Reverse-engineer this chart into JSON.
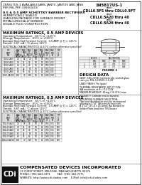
{
  "left_header_lines": [
    [
      "1N5817US-1 AVAILABLE JANS, JANTX, JANTXV AND JANS",
      false,
      3.0
    ],
    [
      "PER MIL-PRF-19500/419",
      false,
      3.0
    ],
    [
      "",
      false,
      3.0
    ],
    [
      "0.5 & 0.5 AMP SCHOTTKY BARRIER RECTIFIERS",
      true,
      3.2
    ],
    [
      "HERMETICALLY SEALED",
      false,
      3.0
    ],
    [
      "LEADLESS PACKAGE FOR SURFACE MOUNT",
      false,
      3.0
    ],
    [
      "METALLURGICALLY BONDED",
      false,
      3.0
    ],
    [
      "DOUBLE PLUG CONSTRUCTION",
      false,
      3.0
    ]
  ],
  "right_header_lines": [
    [
      "1N5817US-1",
      true,
      4.0
    ],
    [
      "and",
      false,
      3.0
    ],
    [
      "CDLL0.5FS thru CDLL0.5FT",
      true,
      3.5
    ],
    [
      "and",
      false,
      3.0
    ],
    [
      "CDLL0.5A20 thru 40",
      true,
      3.5
    ],
    [
      "and",
      false,
      3.0
    ],
    [
      "CDLL0.5A26 thru 40",
      true,
      3.5
    ]
  ],
  "sec1_title": "MAXIMUM RATINGS, 0.5 AMP DEVICES",
  "sec1_ratings": [
    "Operating Temperature:  -65°C to +125°C",
    "Storage Temperature:  -65°C to +150°C",
    "Average Rectified Forward Current:  0.5 AMP @ TJ = 125°C",
    "Derate:  6.67 mA / °C above 125°C"
  ],
  "sec1_elec_header": "ELECTRICAL CHARACTERISTICS @ 25°C (unless otherwise specified)",
  "sec2_title": "MAXIMUM RATINGS, 0.5 AMP DEVICES",
  "sec2_ratings": [
    "Operating Temperature:  -65°C to +125°C",
    "Storage Temperature:  -65°C to +150°C",
    "Average Rectified Forward Current:  0.5 AMP @ TJ = 125°C",
    "Derate:  6.67 mA / °C above 125°C"
  ],
  "sec2_elec_header": "ELECTRICAL CHARACTERISTICS @ 25°C (unless otherwise specified)",
  "table_col_headers": [
    "CDI\nPART\nNUMBER",
    "MAXIMUM\nREPETITIVE\nPEAK REVERSE\nVOLTAGE\nVRRM",
    "MAXIMUM\nRMS\nVOLTAGE\nVRMS",
    "MAXIMUM DC\nBLOCKING\nVOLTAGE\nVDC",
    "MAXIMUM\nAVERAGE\nFORWARD\nRECTIFIED\nCURRENT\nIF(AV)",
    "MAXIMUM\nPEAK SURGE\nFORWARD\nCURRENT\nIFSM",
    "MAXIMUM\nFORWARD\nVOLTAGE\nVF",
    "MAXIMUM\nREVERSE\nCURRENT\nIR",
    "TYPICAL\nJUNCTION\nCAPACITANCE\nCJ"
  ],
  "table_col_units": [
    "",
    "VOLTS",
    "VOLTS",
    "VOLTS",
    "AMP",
    "AMP",
    "VOLT",
    "mA",
    "pF"
  ],
  "table_col_cond": [
    "",
    "@ 0.5 To 0.0 AMP @ 85 LCI",
    "",
    "",
    "",
    "1 Cycle",
    "@ 0.5A",
    "@ V=VDC Ty=25C",
    "@ 1MHZ"
  ],
  "table1_rows": [
    [
      "CDL0.5A20",
      "20",
      "14",
      "20",
      "0.5",
      "15",
      "0.55",
      "0.01",
      ""
    ],
    [
      "CDL0.5A30",
      "30",
      "21",
      "30",
      "0.5",
      "15",
      "0.55",
      "0.01",
      ""
    ],
    [
      "CDL0.5A40",
      "40",
      "28",
      "40",
      "0.5",
      "15",
      "0.55",
      "0.01",
      ""
    ],
    [
      "CDL0.5A60",
      "60",
      "42",
      "60",
      "0.5",
      "15",
      "0.55",
      "0.05",
      ""
    ],
    [
      "CDL0.5A80",
      "80",
      "56",
      "80",
      "0.5",
      "15",
      "0.60",
      "0.05",
      ""
    ],
    [
      "CDL0.5A100",
      "100",
      "70",
      "100",
      "0.5",
      "15",
      "0.65",
      "0.10",
      ""
    ]
  ],
  "table2_rows": [
    [
      "CDLL0.5A26",
      "26",
      "18",
      "26",
      "0.5",
      "15",
      "0.55",
      "0.01",
      "150"
    ],
    [
      "CDLL0.5A30",
      "30",
      "21",
      "30",
      "0.5",
      "15",
      "0.55",
      "0.01",
      "150"
    ],
    [
      "CDLL0.5A40",
      "40",
      "28",
      "40",
      "0.5",
      "15",
      "0.55",
      "0.01",
      "150"
    ],
    [
      "CDLL0.5A60",
      "60",
      "42",
      "60",
      "0.5",
      "15",
      "0.55",
      "0.05",
      "150"
    ],
    [
      "CDLL0.5A80",
      "80",
      "56",
      "80",
      "0.5",
      "15",
      "0.60",
      "0.05",
      "150"
    ],
    [
      "CDLL0.5A100",
      "100",
      "70",
      "100",
      "0.5",
      "15",
      "0.65",
      "0.10",
      "150"
    ]
  ],
  "figure_label": "FIGURE 1",
  "design_data_title": "DESIGN DATA",
  "design_data_lines": [
    "CASE: CDLL/SOD, hermetically sealed glass",
    "case per MIL-S-19500-1-S-28",
    "",
    "LEAD FINISH: Tin (pure)",
    "",
    "THERMAL RESISTANCE: θJC 27°C/W,",
    "θJA maximum at δ = 0.5°C/W",
    "",
    "MAXIMUM WEIGHT: 45mg / 10 (3%) max",
    "",
    "POLARITY: Cathode end is banded",
    "",
    "MOUNTING SURFACE SELECTION:",
    "The heat distribution may be maximized",
    "utilizing a 1\"x1\" Aluminum heat sink.",
    "A 1\"x1\" (25.4 x 25.4mm) Au Bonded or",
    "Solder Plate lead free TIN Source"
  ],
  "cdi_name": "COMPENSATED DEVICES INCORPORATED",
  "cdi_address": "33 COREY STREET, MELROSE, MASSACHUSETTS 02176",
  "cdi_phone": "PHONE: (781) 662-3371",
  "cdi_fax": "FAX: (781) 662-7375",
  "cdi_website": "WEBSITE: http://www.cdi-diodes.com",
  "cdi_email": "E-Mail: info@cdi-diodes.com",
  "bg_color": "#ffffff",
  "border_color": "#444444",
  "divider_color": "#888888",
  "header_fill": "#e8e8e8",
  "table_border": "#666666"
}
